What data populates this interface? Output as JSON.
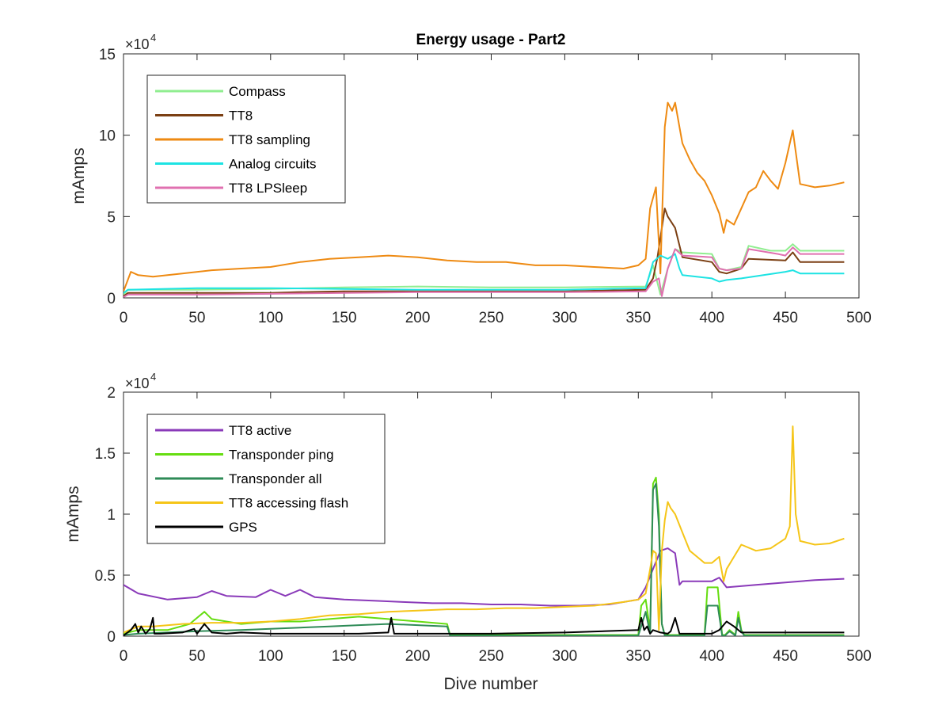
{
  "chart_data": [
    {
      "type": "line",
      "title": "Energy usage - Part2",
      "xlabel": "",
      "ylabel": "mAmps",
      "xlim": [
        0,
        500
      ],
      "ylim": [
        0,
        15
      ],
      "y_multiplier": "×10",
      "y_multiplier_exp": "4",
      "xticks": [
        "0",
        "50",
        "100",
        "150",
        "200",
        "250",
        "300",
        "350",
        "400",
        "450",
        "500"
      ],
      "yticks": [
        "0",
        "5",
        "10",
        "15"
      ],
      "grid": false,
      "legend": "top-left",
      "series": [
        {
          "name": "Compass",
          "color": "#90ee90",
          "x": [
            0,
            3,
            50,
            100,
            150,
            200,
            250,
            300,
            355,
            360,
            365,
            370,
            375,
            380,
            400,
            405,
            410,
            420,
            425,
            440,
            450,
            455,
            460,
            490
          ],
          "y": [
            0.2,
            0.5,
            0.5,
            0.55,
            0.65,
            0.7,
            0.65,
            0.65,
            0.7,
            2.0,
            0.2,
            1.8,
            3.0,
            2.8,
            2.7,
            1.8,
            1.7,
            1.9,
            3.2,
            2.9,
            2.9,
            3.3,
            2.9,
            2.9
          ]
        },
        {
          "name": "TT8",
          "color": "#7b3f13",
          "x": [
            0,
            3,
            50,
            100,
            118,
            150,
            200,
            250,
            300,
            355,
            360,
            363,
            368,
            370,
            375,
            380,
            400,
            405,
            410,
            420,
            425,
            450,
            455,
            460,
            490
          ],
          "y": [
            0.1,
            0.3,
            0.3,
            0.3,
            0.35,
            0.4,
            0.4,
            0.4,
            0.4,
            0.5,
            1.2,
            2.5,
            5.5,
            5.0,
            4.3,
            2.5,
            2.2,
            1.6,
            1.5,
            1.8,
            2.4,
            2.3,
            2.8,
            2.2,
            2.2
          ]
        },
        {
          "name": "TT8 sampling",
          "color": "#ee8a12",
          "x": [
            0,
            5,
            10,
            20,
            40,
            60,
            80,
            100,
            120,
            140,
            160,
            180,
            200,
            220,
            240,
            260,
            280,
            300,
            320,
            340,
            350,
            355,
            358,
            362,
            365,
            368,
            370,
            373,
            375,
            378,
            380,
            385,
            390,
            395,
            400,
            405,
            408,
            410,
            415,
            420,
            425,
            430,
            435,
            440,
            445,
            450,
            455,
            460,
            465,
            470,
            480,
            490
          ],
          "y": [
            0.4,
            1.6,
            1.4,
            1.3,
            1.5,
            1.7,
            1.8,
            1.9,
            2.2,
            2.4,
            2.5,
            2.6,
            2.5,
            2.3,
            2.2,
            2.2,
            2.0,
            2.0,
            1.9,
            1.8,
            2.0,
            2.4,
            5.5,
            6.8,
            1.5,
            10.5,
            12.0,
            11.5,
            12.0,
            10.5,
            9.5,
            8.5,
            7.7,
            7.2,
            6.3,
            5.2,
            4.0,
            4.8,
            4.5,
            5.5,
            6.5,
            6.8,
            7.8,
            7.2,
            6.7,
            8.3,
            10.3,
            7.0,
            6.9,
            6.8,
            6.9,
            7.1
          ]
        },
        {
          "name": "Analog circuits",
          "color": "#1de3e3",
          "x": [
            0,
            3,
            50,
            100,
            150,
            200,
            250,
            300,
            355,
            360,
            365,
            370,
            375,
            378,
            380,
            400,
            405,
            410,
            420,
            450,
            455,
            460,
            490
          ],
          "y": [
            0.3,
            0.5,
            0.6,
            0.6,
            0.55,
            0.5,
            0.5,
            0.5,
            0.6,
            2.2,
            2.6,
            2.4,
            2.7,
            1.8,
            1.4,
            1.2,
            1.0,
            1.1,
            1.2,
            1.6,
            1.7,
            1.5,
            1.5
          ]
        },
        {
          "name": "TT8 LPSleep",
          "color": "#e070b0",
          "x": [
            0,
            3,
            50,
            100,
            150,
            200,
            250,
            300,
            355,
            360,
            364,
            366,
            370,
            375,
            380,
            400,
            405,
            410,
            420,
            425,
            445,
            450,
            455,
            460,
            490
          ],
          "y": [
            0.05,
            0.2,
            0.2,
            0.25,
            0.3,
            0.35,
            0.35,
            0.35,
            0.4,
            1.0,
            1.2,
            0.1,
            1.8,
            3.0,
            2.6,
            2.5,
            1.8,
            1.7,
            1.8,
            3.0,
            2.7,
            2.6,
            3.1,
            2.7,
            2.7
          ]
        }
      ]
    },
    {
      "type": "line",
      "title": "",
      "xlabel": "Dive number",
      "ylabel": "mAmps",
      "xlim": [
        0,
        500
      ],
      "ylim": [
        0,
        2
      ],
      "y_multiplier": "×10",
      "y_multiplier_exp": "4",
      "xticks": [
        "0",
        "50",
        "100",
        "150",
        "200",
        "250",
        "300",
        "350",
        "400",
        "450",
        "500"
      ],
      "yticks": [
        "0",
        "0.5",
        "1",
        "1.5",
        "2"
      ],
      "grid": false,
      "legend": "top-left",
      "series": [
        {
          "name": "TT8 active",
          "color": "#8a3ab9",
          "x": [
            0,
            10,
            30,
            50,
            60,
            70,
            90,
            100,
            110,
            120,
            130,
            150,
            170,
            190,
            210,
            230,
            250,
            270,
            290,
            310,
            330,
            350,
            355,
            360,
            365,
            370,
            375,
            378,
            380,
            390,
            400,
            405,
            410,
            430,
            450,
            470,
            490
          ],
          "y": [
            0.42,
            0.35,
            0.3,
            0.32,
            0.37,
            0.33,
            0.32,
            0.38,
            0.33,
            0.38,
            0.32,
            0.3,
            0.29,
            0.28,
            0.27,
            0.27,
            0.26,
            0.26,
            0.25,
            0.25,
            0.26,
            0.3,
            0.4,
            0.55,
            0.7,
            0.72,
            0.68,
            0.42,
            0.45,
            0.45,
            0.45,
            0.48,
            0.4,
            0.42,
            0.44,
            0.46,
            0.47
          ]
        },
        {
          "name": "Transponder ping",
          "color": "#66dd11",
          "x": [
            0,
            10,
            30,
            45,
            55,
            60,
            80,
            100,
            120,
            140,
            160,
            180,
            200,
            220,
            222,
            240,
            300,
            340,
            350,
            352,
            355,
            358,
            360,
            362,
            364,
            366,
            368,
            370,
            380,
            395,
            397,
            399,
            401,
            404,
            407,
            409,
            412,
            416,
            418,
            420,
            422,
            440,
            490
          ],
          "y": [
            0.02,
            0.05,
            0.05,
            0.1,
            0.2,
            0.14,
            0.1,
            0.12,
            0.12,
            0.14,
            0.16,
            0.14,
            0.12,
            0.1,
            0.01,
            0.01,
            0.01,
            0.01,
            0.01,
            0.25,
            0.3,
            0.05,
            1.25,
            1.3,
            1.0,
            0.1,
            0.01,
            0.01,
            0.01,
            0.01,
            0.4,
            0.4,
            0.4,
            0.4,
            0.01,
            0.01,
            0.05,
            0.01,
            0.2,
            0.05,
            0.01,
            0.01,
            0.01
          ]
        },
        {
          "name": "Transponder all",
          "color": "#2e8b57",
          "x": [
            0,
            10,
            30,
            50,
            80,
            100,
            140,
            160,
            180,
            200,
            220,
            222,
            300,
            350,
            355,
            358,
            360,
            362,
            364,
            366,
            368,
            370,
            395,
            397,
            399,
            401,
            404,
            407,
            409,
            412,
            416,
            418,
            420,
            422,
            490
          ],
          "y": [
            0.01,
            0.02,
            0.03,
            0.04,
            0.05,
            0.06,
            0.08,
            0.09,
            0.1,
            0.09,
            0.08,
            0.005,
            0.005,
            0.005,
            0.2,
            0.02,
            1.2,
            1.25,
            0.9,
            0.1,
            0.005,
            0.005,
            0.005,
            0.25,
            0.25,
            0.25,
            0.25,
            0.005,
            0.005,
            0.04,
            0.005,
            0.15,
            0.04,
            0.005,
            0.005
          ]
        },
        {
          "name": "TT8 accessing flash",
          "color": "#f5c518",
          "x": [
            0,
            10,
            20,
            40,
            60,
            80,
            100,
            120,
            140,
            160,
            180,
            200,
            220,
            240,
            260,
            280,
            300,
            320,
            340,
            350,
            355,
            358,
            360,
            362,
            364,
            366,
            368,
            370,
            372,
            375,
            380,
            385,
            390,
            395,
            400,
            405,
            408,
            410,
            415,
            420,
            430,
            440,
            450,
            453,
            455,
            457,
            460,
            470,
            480,
            490
          ],
          "y": [
            0.03,
            0.08,
            0.08,
            0.1,
            0.11,
            0.11,
            0.12,
            0.14,
            0.17,
            0.18,
            0.2,
            0.21,
            0.22,
            0.22,
            0.23,
            0.23,
            0.24,
            0.25,
            0.28,
            0.3,
            0.35,
            0.55,
            0.7,
            0.68,
            0.05,
            0.7,
            0.95,
            1.1,
            1.05,
            1.0,
            0.85,
            0.7,
            0.65,
            0.6,
            0.6,
            0.65,
            0.45,
            0.55,
            0.65,
            0.75,
            0.7,
            0.72,
            0.8,
            0.9,
            1.72,
            1.0,
            0.78,
            0.75,
            0.76,
            0.8
          ]
        },
        {
          "name": "GPS",
          "color": "#000000",
          "x": [
            0,
            5,
            8,
            10,
            12,
            15,
            18,
            20,
            21,
            25,
            40,
            48,
            50,
            55,
            60,
            70,
            80,
            100,
            120,
            140,
            160,
            180,
            182,
            184,
            200,
            220,
            250,
            300,
            350,
            352,
            354,
            356,
            358,
            360,
            365,
            370,
            372,
            375,
            378,
            380,
            395,
            400,
            405,
            410,
            415,
            420,
            425,
            440,
            490
          ],
          "y": [
            0.005,
            0.05,
            0.1,
            0.03,
            0.08,
            0.02,
            0.06,
            0.15,
            0.02,
            0.02,
            0.03,
            0.06,
            0.02,
            0.1,
            0.03,
            0.02,
            0.03,
            0.02,
            0.02,
            0.02,
            0.02,
            0.03,
            0.15,
            0.02,
            0.02,
            0.02,
            0.02,
            0.03,
            0.05,
            0.15,
            0.05,
            0.08,
            0.02,
            0.05,
            0.03,
            0.02,
            0.04,
            0.15,
            0.02,
            0.02,
            0.02,
            0.02,
            0.05,
            0.12,
            0.08,
            0.03,
            0.03,
            0.03,
            0.03
          ]
        }
      ]
    }
  ]
}
